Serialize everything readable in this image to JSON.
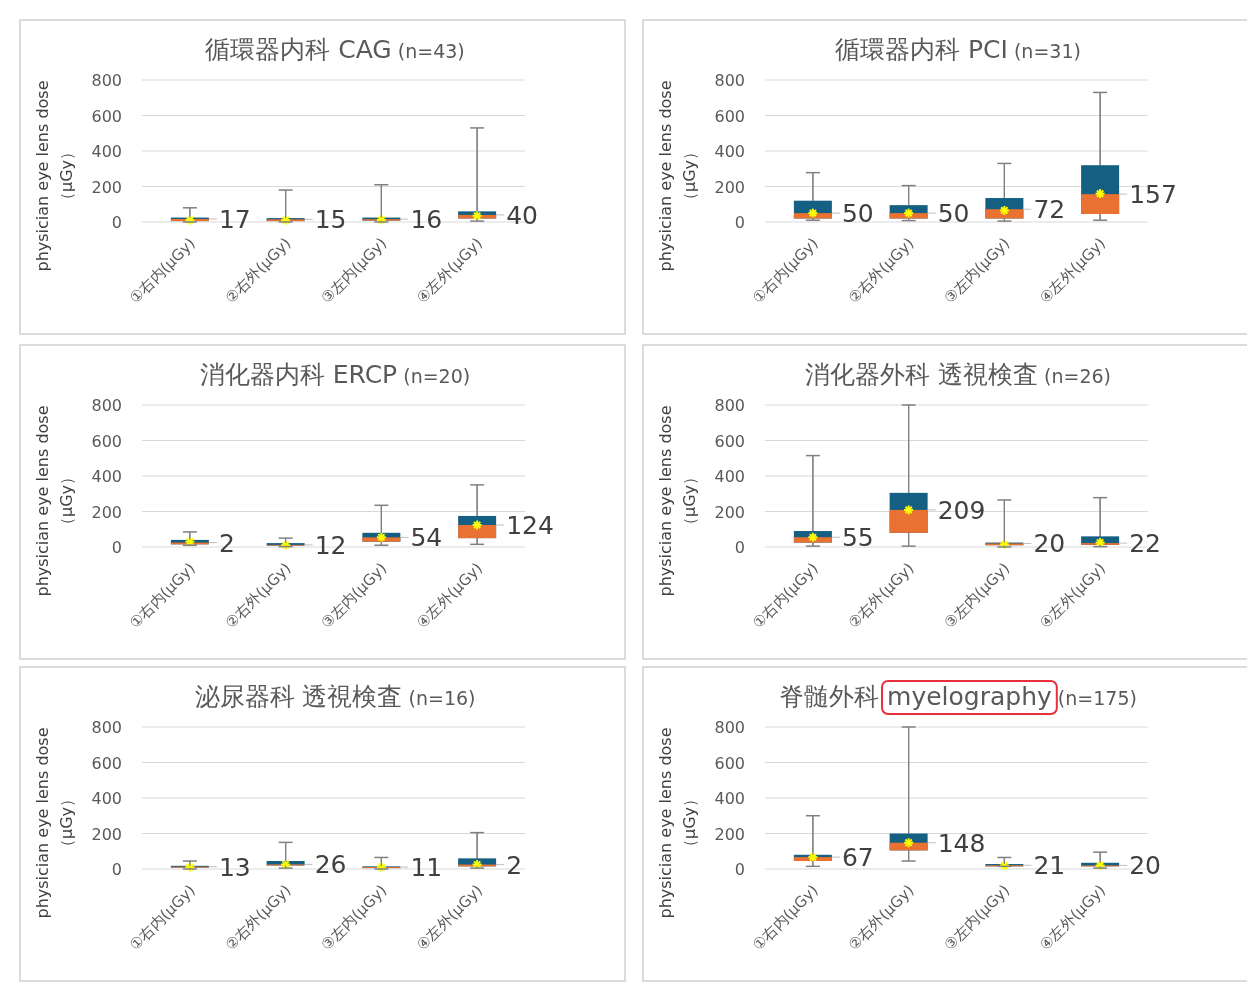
{
  "chart_data": [
    {
      "type": "box",
      "title": "循環器内科 CAG (n=43)",
      "ylabel": "physician eye lens dose\n（μGy）",
      "categories": [
        "①右内(μGy)",
        "②右外(μGy)",
        "③左内(μGy)",
        "④左外(μGy)"
      ],
      "ylim": [
        0,
        800
      ],
      "yticks": [
        0,
        200,
        400,
        600,
        800
      ],
      "grid": "y",
      "series": [
        {
          "color": "#156082",
          "boxes": [
            {
              "low": 0,
              "q1": 5,
              "median": 17,
              "q3": 25,
              "high": 80,
              "mean": 10
            },
            {
              "low": 0,
              "q1": 5,
              "median": 15,
              "q3": 22,
              "high": 180,
              "mean": 10
            },
            {
              "low": 0,
              "q1": 8,
              "median": 16,
              "q3": 25,
              "high": 210,
              "mean": 12
            },
            {
              "low": 5,
              "q1": 20,
              "median": 40,
              "q3": 60,
              "high": 530,
              "mean": 35
            }
          ]
        }
      ],
      "value_labels": [
        "17",
        "15",
        "16",
        "40"
      ]
    },
    {
      "type": "box",
      "title": "循環器内科 PCI (n=31)",
      "ylabel": "physician eye lens dose\n（μGy）",
      "categories": [
        "①右内(μGy)",
        "②右外(μGy)",
        "③左内(μGy)",
        "④左外(μGy)"
      ],
      "ylim": [
        0,
        800
      ],
      "yticks": [
        0,
        200,
        400,
        600,
        800
      ],
      "grid": "y",
      "series": [
        {
          "color": "#156082",
          "boxes": [
            {
              "low": 10,
              "q1": 20,
              "median": 50,
              "q3": 120,
              "high": 278,
              "mean": 50
            },
            {
              "low": 8,
              "q1": 20,
              "median": 50,
              "q3": 95,
              "high": 205,
              "mean": 50
            },
            {
              "low": 5,
              "q1": 20,
              "median": 72,
              "q3": 135,
              "high": 330,
              "mean": 65
            },
            {
              "low": 10,
              "q1": 45,
              "median": 157,
              "q3": 320,
              "high": 730,
              "mean": 160
            }
          ]
        }
      ],
      "value_labels": [
        "50",
        "50",
        "72",
        "157"
      ]
    },
    {
      "type": "box",
      "title": "消化器内科 ERCP (n=20)",
      "ylabel": "physician eye lens dose\n（μGy）",
      "categories": [
        "①右内(μGy)",
        "②右外(μGy)",
        "③左内(μGy)",
        "④左外(μGy)"
      ],
      "ylim": [
        0,
        800
      ],
      "yticks": [
        0,
        200,
        400,
        600,
        800
      ],
      "grid": "y",
      "series": [
        {
          "color": "#156082",
          "boxes": [
            {
              "low": 10,
              "q1": 15,
              "median": 25,
              "q3": 40,
              "high": 85,
              "mean": 30
            },
            {
              "low": 2,
              "q1": 8,
              "median": 12,
              "q3": 22,
              "high": 50,
              "mean": 10
            },
            {
              "low": 10,
              "q1": 30,
              "median": 54,
              "q3": 80,
              "high": 235,
              "mean": 55
            },
            {
              "low": 15,
              "q1": 50,
              "median": 124,
              "q3": 175,
              "high": 350,
              "mean": 124
            }
          ]
        }
      ],
      "value_labels": [
        "2",
        "12",
        "54",
        "124"
      ]
    },
    {
      "type": "box",
      "title": "消化器外科 透視検査 (n=26)",
      "ylabel": "physician eye lens dose\n（μGy）",
      "categories": [
        "①右内(μGy)",
        "②右外(μGy)",
        "③左内(μGy)",
        "④左外(μGy)"
      ],
      "ylim": [
        0,
        800
      ],
      "yticks": [
        0,
        200,
        400,
        600,
        800
      ],
      "grid": "y",
      "series": [
        {
          "color": "#156082",
          "boxes": [
            {
              "low": 5,
              "q1": 25,
              "median": 55,
              "q3": 90,
              "high": 515,
              "mean": 55
            },
            {
              "low": 5,
              "q1": 80,
              "median": 209,
              "q3": 305,
              "high": 800,
              "mean": 209
            },
            {
              "low": 0,
              "q1": 10,
              "median": 20,
              "q3": 25,
              "high": 265,
              "mean": 15
            },
            {
              "low": 2,
              "q1": 12,
              "median": 22,
              "q3": 60,
              "high": 278,
              "mean": 25
            }
          ]
        }
      ],
      "value_labels": [
        "55",
        "209",
        "20",
        "22"
      ]
    },
    {
      "type": "box",
      "title": "泌尿器科 透視検査 (n=16)",
      "ylabel": "physician eye lens dose\n（μGy）",
      "categories": [
        "①右内(μGy)",
        "②右外(μGy)",
        "③左内(μGy)",
        "④左外(μGy)"
      ],
      "ylim": [
        0,
        800
      ],
      "yticks": [
        0,
        200,
        400,
        600,
        800
      ],
      "grid": "y",
      "series": [
        {
          "color": "#156082",
          "boxes": [
            {
              "low": 0,
              "q1": 8,
              "median": 13,
              "q3": 18,
              "high": 45,
              "mean": 10
            },
            {
              "low": 5,
              "q1": 20,
              "median": 26,
              "q3": 45,
              "high": 150,
              "mean": 25
            },
            {
              "low": 0,
              "q1": 5,
              "median": 11,
              "q3": 15,
              "high": 65,
              "mean": 10
            },
            {
              "low": 5,
              "q1": 15,
              "median": 25,
              "q3": 60,
              "high": 205,
              "mean": 25
            }
          ]
        }
      ],
      "value_labels": [
        "13",
        "26",
        "11",
        "2"
      ]
    },
    {
      "type": "box",
      "title": "脊髄外科 myelography (n=175)",
      "ylabel": "physician eye lens dose\n（μGy）",
      "categories": [
        "①右内(μGy)",
        "②右外(μGy)",
        "③左内(μGy)",
        "④左外(μGy)"
      ],
      "ylim": [
        0,
        800
      ],
      "yticks": [
        0,
        200,
        400,
        600,
        800
      ],
      "grid": "y",
      "series": [
        {
          "color": "#156082",
          "boxes": [
            {
              "low": 15,
              "q1": 45,
              "median": 67,
              "q3": 80,
              "high": 300,
              "mean": 67
            },
            {
              "low": 45,
              "q1": 105,
              "median": 148,
              "q3": 200,
              "high": 800,
              "mean": 148
            },
            {
              "low": 15,
              "q1": 15,
              "median": 21,
              "q3": 28,
              "high": 65,
              "mean": 20
            },
            {
              "low": 5,
              "q1": 15,
              "median": 20,
              "q3": 35,
              "high": 95,
              "mean": 20
            }
          ]
        }
      ],
      "value_labels": [
        "67",
        "148",
        "21",
        "20"
      ]
    }
  ]
}
